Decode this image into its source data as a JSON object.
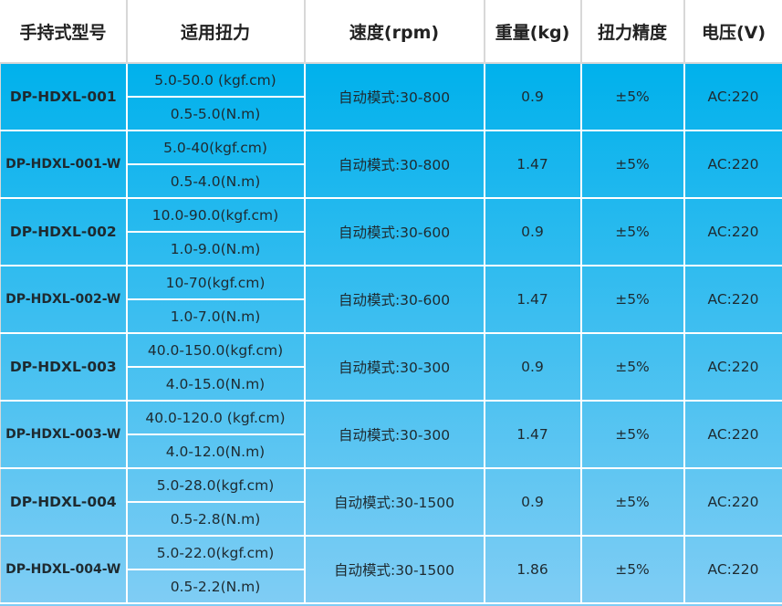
{
  "header": [
    "手持式型号",
    "适用扭力",
    "速度(rpm)",
    "重量(kg)",
    "扭力精度",
    "电压(V)"
  ],
  "colors": {
    "top": "#00b1ec",
    "bottom": "#80cdf4",
    "border": "#ffffff"
  },
  "rows": [
    {
      "model": "DP-HDXL-001",
      "torque_kgf": "5.0-50.0 (kgf.cm)",
      "torque_nm": "0.5-5.0(N.m)",
      "speed": "自动模式:30-800",
      "weight": "0.9",
      "accuracy": "±5%",
      "voltage": "AC:220",
      "variant": false
    },
    {
      "model": "DP-HDXL-001-W",
      "torque_kgf": "5.0-40(kgf.cm)",
      "torque_nm": "0.5-4.0(N.m)",
      "speed": "自动模式:30-800",
      "weight": "1.47",
      "accuracy": "±5%",
      "voltage": "AC:220",
      "variant": true
    },
    {
      "model": "DP-HDXL-002",
      "torque_kgf": "10.0-90.0(kgf.cm)",
      "torque_nm": "1.0-9.0(N.m)",
      "speed": "自动模式:30-600",
      "weight": "0.9",
      "accuracy": "±5%",
      "voltage": "AC:220",
      "variant": false
    },
    {
      "model": "DP-HDXL-002-W",
      "torque_kgf": "10-70(kgf.cm)",
      "torque_nm": "1.0-7.0(N.m)",
      "speed": "自动模式:30-600",
      "weight": "1.47",
      "accuracy": "±5%",
      "voltage": "AC:220",
      "variant": true
    },
    {
      "model": "DP-HDXL-003",
      "torque_kgf": "40.0-150.0(kgf.cm)",
      "torque_nm": "4.0-15.0(N.m)",
      "speed": "自动模式:30-300",
      "weight": "0.9",
      "accuracy": "±5%",
      "voltage": "AC:220",
      "variant": false
    },
    {
      "model": "DP-HDXL-003-W",
      "torque_kgf": "40.0-120.0 (kgf.cm)",
      "torque_nm": "4.0-12.0(N.m)",
      "speed": "自动模式:30-300",
      "weight": "1.47",
      "accuracy": "±5%",
      "voltage": "AC:220",
      "variant": true
    },
    {
      "model": "DP-HDXL-004",
      "torque_kgf": "5.0-28.0(kgf.cm)",
      "torque_nm": "0.5-2.8(N.m)",
      "speed": "自动模式:30-1500",
      "weight": "0.9",
      "accuracy": "±5%",
      "voltage": "AC:220",
      "variant": false
    },
    {
      "model": "DP-HDXL-004-W",
      "torque_kgf": "5.0-22.0(kgf.cm)",
      "torque_nm": "0.5-2.2(N.m)",
      "speed": "自动模式:30-1500",
      "weight": "1.86",
      "accuracy": "±5%",
      "voltage": "AC:220",
      "variant": true
    }
  ]
}
